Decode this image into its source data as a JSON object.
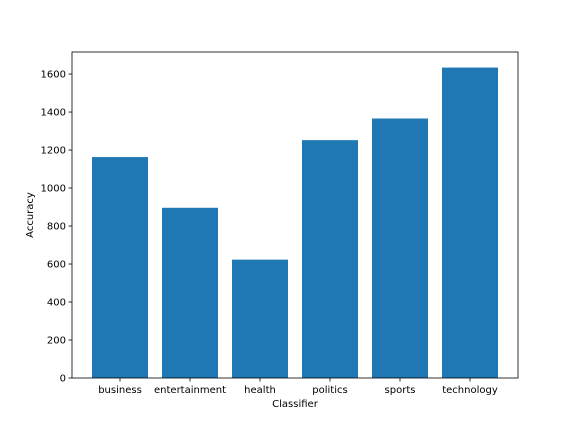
{
  "chart_data": {
    "type": "bar",
    "categories": [
      "business",
      "entertainment",
      "health",
      "politics",
      "sports",
      "technology"
    ],
    "values": [
      1163,
      896,
      623,
      1252,
      1366,
      1634
    ],
    "xlabel": "Classifier",
    "ylabel": "Accuracy",
    "ylim": [
      0,
      1716
    ],
    "yticks": [
      0,
      200,
      400,
      600,
      800,
      1000,
      1200,
      1400,
      1600
    ],
    "grid": false,
    "legend": "none",
    "bar_color": "#1f77b4"
  }
}
